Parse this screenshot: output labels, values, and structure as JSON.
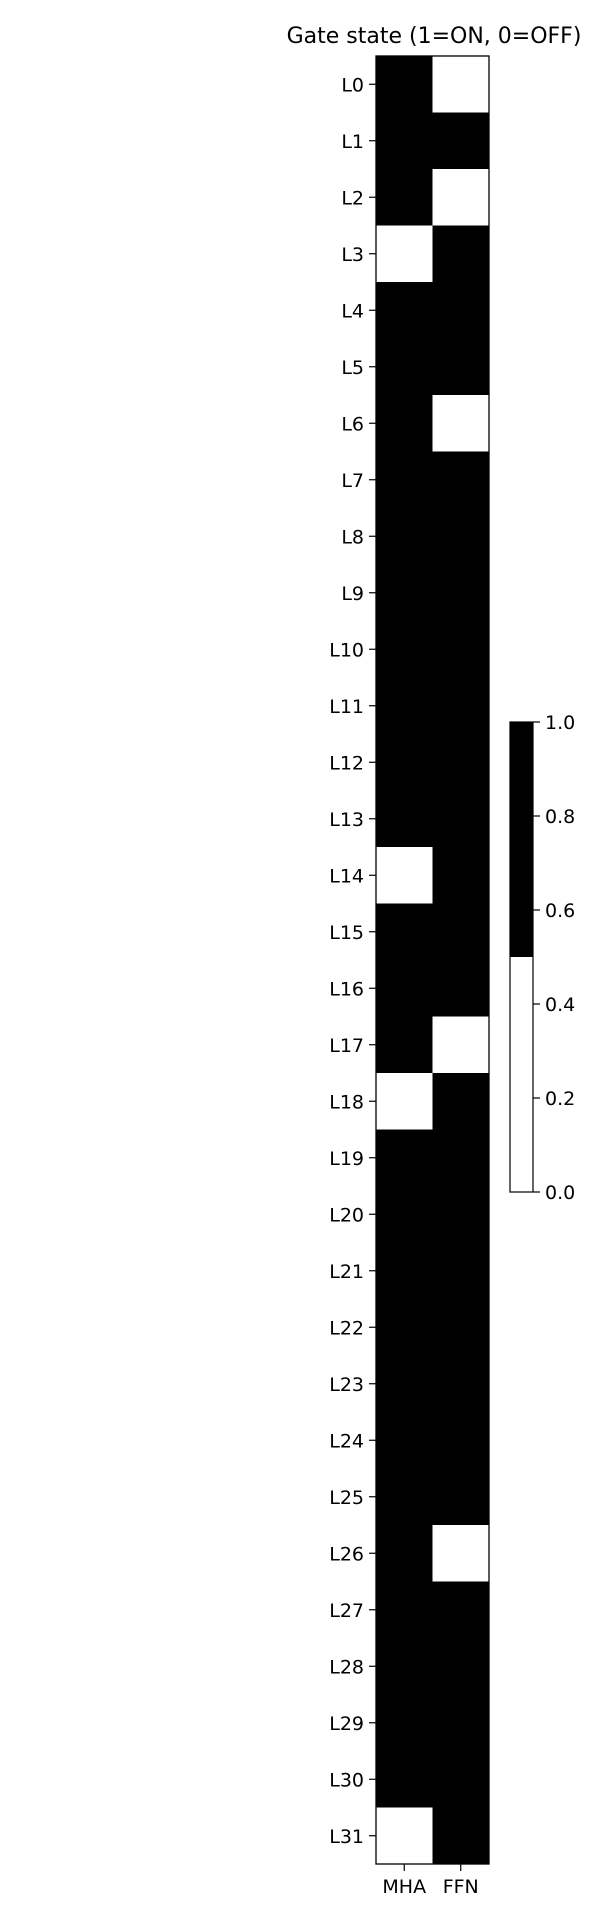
{
  "chart_data": {
    "type": "heatmap",
    "title": "Gate state (1=ON, 0=OFF)",
    "x_categories": [
      "MHA",
      "FFN"
    ],
    "y_categories": [
      "L0",
      "L1",
      "L2",
      "L3",
      "L4",
      "L5",
      "L6",
      "L7",
      "L8",
      "L9",
      "L10",
      "L11",
      "L12",
      "L13",
      "L14",
      "L15",
      "L16",
      "L17",
      "L18",
      "L19",
      "L20",
      "L21",
      "L22",
      "L23",
      "L24",
      "L25",
      "L26",
      "L27",
      "L28",
      "L29",
      "L30",
      "L31"
    ],
    "values": [
      [
        1,
        0
      ],
      [
        1,
        1
      ],
      [
        1,
        0
      ],
      [
        0,
        1
      ],
      [
        1,
        1
      ],
      [
        1,
        1
      ],
      [
        1,
        0
      ],
      [
        1,
        1
      ],
      [
        1,
        1
      ],
      [
        1,
        1
      ],
      [
        1,
        1
      ],
      [
        1,
        1
      ],
      [
        1,
        1
      ],
      [
        1,
        1
      ],
      [
        0,
        1
      ],
      [
        1,
        1
      ],
      [
        1,
        1
      ],
      [
        1,
        0
      ],
      [
        0,
        1
      ],
      [
        1,
        1
      ],
      [
        1,
        1
      ],
      [
        1,
        1
      ],
      [
        1,
        1
      ],
      [
        1,
        1
      ],
      [
        1,
        1
      ],
      [
        1,
        1
      ],
      [
        1,
        0
      ],
      [
        1,
        1
      ],
      [
        1,
        1
      ],
      [
        1,
        1
      ],
      [
        1,
        1
      ],
      [
        0,
        1
      ]
    ],
    "value_range": [
      0,
      1
    ],
    "colormap": {
      "on": "#000000",
      "off": "#ffffff",
      "threshold": 0.5
    },
    "colorbar": {
      "ticks": [
        "0.0",
        "0.2",
        "0.4",
        "0.6",
        "0.8",
        "1.0"
      ],
      "range": [
        0,
        1
      ]
    },
    "grid": false,
    "legend": "none"
  }
}
